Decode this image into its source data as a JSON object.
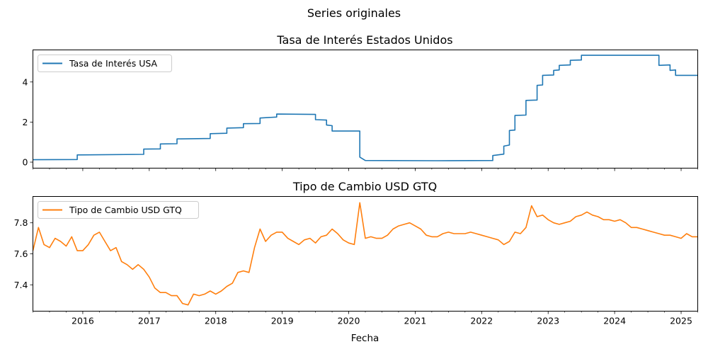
{
  "figure": {
    "suptitle": "Series originales",
    "xlabel": "Fecha"
  },
  "x_ticks": [
    "2016",
    "2017",
    "2018",
    "2019",
    "2020",
    "2021",
    "2022",
    "2023",
    "2024",
    "2025"
  ],
  "chart_data": [
    {
      "type": "line",
      "title": "Tasa de Interés Estados Unidos",
      "xlabel": "Fecha",
      "ylabel": "",
      "xlim": [
        "2015-04",
        "2025-04"
      ],
      "ylim": [
        -0.3,
        5.6
      ],
      "y_ticks": [
        "0",
        "2",
        "4"
      ],
      "legend_position": "upper-left",
      "grid": false,
      "series": [
        {
          "name": "Tasa de Interés USA",
          "color": "#1f77b4",
          "x": [
            "2015-04",
            "2015-12",
            "2015-12",
            "2016-12",
            "2016-12",
            "2017-03",
            "2017-03",
            "2017-06",
            "2017-06",
            "2017-12",
            "2017-12",
            "2018-03",
            "2018-03",
            "2018-06",
            "2018-06",
            "2018-09",
            "2018-09",
            "2018-12",
            "2018-12",
            "2019-07",
            "2019-07",
            "2019-09",
            "2019-09",
            "2019-10",
            "2019-10",
            "2020-03",
            "2020-03",
            "2020-04",
            "2021-05",
            "2022-03",
            "2022-03",
            "2022-05",
            "2022-05",
            "2022-06",
            "2022-06",
            "2022-07",
            "2022-07",
            "2022-09",
            "2022-09",
            "2022-11",
            "2022-11",
            "2022-12",
            "2022-12",
            "2023-02",
            "2023-02",
            "2023-03",
            "2023-03",
            "2023-05",
            "2023-05",
            "2023-07",
            "2023-07",
            "2024-09",
            "2024-09",
            "2024-11",
            "2024-11",
            "2024-12",
            "2024-12",
            "2025-04"
          ],
          "values": [
            0.12,
            0.13,
            0.36,
            0.39,
            0.65,
            0.66,
            0.91,
            0.92,
            1.16,
            1.18,
            1.42,
            1.44,
            1.7,
            1.72,
            1.92,
            1.93,
            2.2,
            2.25,
            2.4,
            2.38,
            2.12,
            2.1,
            1.85,
            1.82,
            1.55,
            1.55,
            0.25,
            0.08,
            0.07,
            0.08,
            0.33,
            0.4,
            0.8,
            0.85,
            1.58,
            1.6,
            2.33,
            2.35,
            3.08,
            3.1,
            3.83,
            3.85,
            4.33,
            4.35,
            4.58,
            4.6,
            4.83,
            4.85,
            5.08,
            5.1,
            5.33,
            5.33,
            4.83,
            4.85,
            4.58,
            4.6,
            4.33,
            4.33
          ]
        }
      ]
    },
    {
      "type": "line",
      "title": "Tipo de Cambio USD GTQ",
      "xlabel": "Fecha",
      "ylabel": "",
      "xlim": [
        "2015-04",
        "2025-04"
      ],
      "ylim": [
        7.23,
        7.97
      ],
      "y_ticks": [
        "7.4",
        "7.6",
        "7.8"
      ],
      "legend_position": "upper-left",
      "grid": false,
      "series": [
        {
          "name": "Tipo de Cambio USD GTQ",
          "color": "#ff7f0e",
          "x": [
            "2015-04",
            "2015-05",
            "2015-06",
            "2015-07",
            "2015-08",
            "2015-09",
            "2015-10",
            "2015-11",
            "2015-12",
            "2016-01",
            "2016-02",
            "2016-03",
            "2016-04",
            "2016-05",
            "2016-06",
            "2016-07",
            "2016-08",
            "2016-09",
            "2016-10",
            "2016-11",
            "2016-12",
            "2017-01",
            "2017-02",
            "2017-03",
            "2017-04",
            "2017-05",
            "2017-06",
            "2017-07",
            "2017-08",
            "2017-09",
            "2017-10",
            "2017-11",
            "2017-12",
            "2018-01",
            "2018-02",
            "2018-03",
            "2018-04",
            "2018-05",
            "2018-06",
            "2018-07",
            "2018-08",
            "2018-09",
            "2018-10",
            "2018-11",
            "2018-12",
            "2019-01",
            "2019-02",
            "2019-03",
            "2019-04",
            "2019-05",
            "2019-06",
            "2019-07",
            "2019-08",
            "2019-09",
            "2019-10",
            "2019-11",
            "2019-12",
            "2020-01",
            "2020-02",
            "2020-03",
            "2020-04",
            "2020-05",
            "2020-06",
            "2020-07",
            "2020-08",
            "2020-09",
            "2020-10",
            "2020-11",
            "2020-12",
            "2021-01",
            "2021-02",
            "2021-03",
            "2021-04",
            "2021-05",
            "2021-06",
            "2021-07",
            "2021-08",
            "2021-09",
            "2021-10",
            "2021-11",
            "2021-12",
            "2022-01",
            "2022-02",
            "2022-03",
            "2022-04",
            "2022-05",
            "2022-06",
            "2022-07",
            "2022-08",
            "2022-09",
            "2022-10",
            "2022-11",
            "2022-12",
            "2023-01",
            "2023-02",
            "2023-03",
            "2023-04",
            "2023-05",
            "2023-06",
            "2023-07",
            "2023-08",
            "2023-09",
            "2023-10",
            "2023-11",
            "2023-12",
            "2024-01",
            "2024-02",
            "2024-03",
            "2024-04",
            "2024-05",
            "2024-06",
            "2024-07",
            "2024-08",
            "2024-09",
            "2024-10",
            "2024-11",
            "2024-12",
            "2025-01",
            "2025-02",
            "2025-03",
            "2025-04"
          ],
          "values": [
            7.62,
            7.77,
            7.66,
            7.64,
            7.7,
            7.68,
            7.65,
            7.71,
            7.62,
            7.62,
            7.66,
            7.72,
            7.74,
            7.68,
            7.62,
            7.64,
            7.55,
            7.53,
            7.5,
            7.53,
            7.5,
            7.45,
            7.38,
            7.35,
            7.35,
            7.33,
            7.33,
            7.28,
            7.27,
            7.34,
            7.33,
            7.34,
            7.36,
            7.34,
            7.36,
            7.39,
            7.41,
            7.48,
            7.49,
            7.48,
            7.64,
            7.76,
            7.68,
            7.72,
            7.74,
            7.74,
            7.7,
            7.68,
            7.66,
            7.69,
            7.7,
            7.67,
            7.71,
            7.72,
            7.76,
            7.73,
            7.69,
            7.67,
            7.66,
            7.93,
            7.7,
            7.71,
            7.7,
            7.7,
            7.72,
            7.76,
            7.78,
            7.79,
            7.8,
            7.78,
            7.76,
            7.72,
            7.71,
            7.71,
            7.73,
            7.74,
            7.73,
            7.73,
            7.73,
            7.74,
            7.73,
            7.72,
            7.71,
            7.7,
            7.69,
            7.66,
            7.68,
            7.74,
            7.73,
            7.77,
            7.91,
            7.84,
            7.85,
            7.82,
            7.8,
            7.79,
            7.8,
            7.81,
            7.84,
            7.85,
            7.87,
            7.85,
            7.84,
            7.82,
            7.82,
            7.81,
            7.82,
            7.8,
            7.77,
            7.77,
            7.76,
            7.75,
            7.74,
            7.73,
            7.72,
            7.72,
            7.71,
            7.7,
            7.73,
            7.71,
            7.71
          ]
        }
      ]
    }
  ]
}
